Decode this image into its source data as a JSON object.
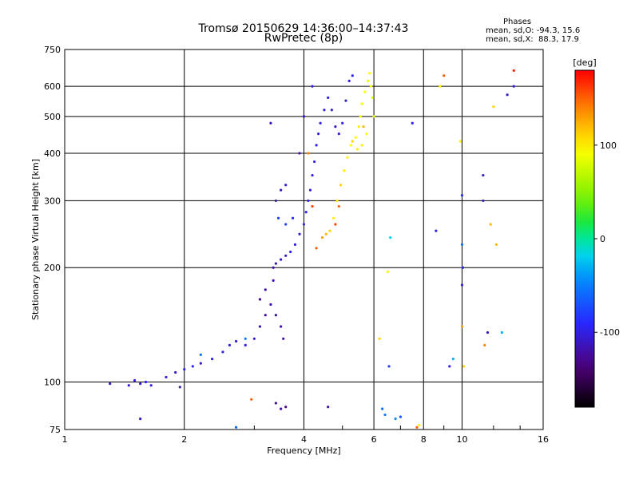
{
  "title_line1": "Tromsø 20150629 14:36:00–14:37:43",
  "title_line2": "RwPretec (8p)",
  "phases": {
    "title": "Phases",
    "o_line": "mean, sd,O: -94.3, 15.6",
    "x_line": "mean, sd,X:  88.3, 17.9"
  },
  "colorbar": {
    "label": "[deg]",
    "ticks": [
      100,
      0,
      -100
    ],
    "range": [
      -180,
      180
    ]
  },
  "colors": {
    "o_mode": "#1a3fd6",
    "x_mode": "#e8e800"
  },
  "chart_data": {
    "type": "scatter",
    "xlabel": "Frequency [MHz]",
    "ylabel": "Stationary phase Virtual Height [km]",
    "xscale": "log",
    "yscale": "log",
    "xlim": [
      1,
      16
    ],
    "ylim": [
      75,
      750
    ],
    "xticks": [
      1,
      2,
      4,
      6,
      8,
      10,
      16
    ],
    "yticks": [
      75,
      100,
      200,
      300,
      400,
      500,
      600,
      750
    ],
    "grid": true,
    "series": [
      {
        "points": [
          [
            1.3,
            99,
            -110
          ],
          [
            1.45,
            98,
            -105
          ],
          [
            1.5,
            101,
            -100
          ],
          [
            1.55,
            99,
            -110
          ],
          [
            1.6,
            100,
            -95
          ],
          [
            1.65,
            98,
            -100
          ],
          [
            1.8,
            103,
            -100
          ],
          [
            1.9,
            106,
            -110
          ],
          [
            2.0,
            108,
            -100
          ],
          [
            2.1,
            110,
            -95
          ],
          [
            2.2,
            112,
            -105
          ],
          [
            2.35,
            115,
            -100
          ],
          [
            2.5,
            120,
            -100
          ],
          [
            2.6,
            125,
            -95
          ],
          [
            2.7,
            128,
            -100
          ],
          [
            2.85,
            125,
            -100
          ],
          [
            3.0,
            130,
            -105
          ],
          [
            3.1,
            140,
            -110
          ],
          [
            3.2,
            150,
            -120
          ],
          [
            3.3,
            160,
            -120
          ],
          [
            3.4,
            150,
            -115
          ],
          [
            3.5,
            140,
            -120
          ],
          [
            3.55,
            130,
            -120
          ],
          [
            3.1,
            165,
            -125
          ],
          [
            3.2,
            175,
            -120
          ],
          [
            3.35,
            185,
            -115
          ],
          [
            3.35,
            200,
            -120
          ],
          [
            3.4,
            205,
            -110
          ],
          [
            3.5,
            210,
            -105
          ],
          [
            3.6,
            215,
            -110
          ],
          [
            3.7,
            220,
            -100
          ],
          [
            3.8,
            230,
            -100
          ],
          [
            3.9,
            245,
            -100
          ],
          [
            4.0,
            260,
            -100
          ],
          [
            4.05,
            280,
            -100
          ],
          [
            4.1,
            300,
            -100
          ],
          [
            4.15,
            320,
            -105
          ],
          [
            4.2,
            350,
            -100
          ],
          [
            4.25,
            380,
            -100
          ],
          [
            4.3,
            420,
            -100
          ],
          [
            4.35,
            450,
            -100
          ],
          [
            4.4,
            480,
            -100
          ],
          [
            4.5,
            520,
            -100
          ],
          [
            4.6,
            560,
            -100
          ],
          [
            4.7,
            520,
            -100
          ],
          [
            4.8,
            470,
            -105
          ],
          [
            4.9,
            450,
            -100
          ],
          [
            5.0,
            480,
            -100
          ],
          [
            5.1,
            550,
            -100
          ],
          [
            5.2,
            620,
            -100
          ],
          [
            5.3,
            640,
            -95
          ],
          [
            3.4,
            300,
            -110
          ],
          [
            3.5,
            320,
            -110
          ],
          [
            3.6,
            330,
            -100
          ],
          [
            3.45,
            270,
            -80
          ],
          [
            3.6,
            260,
            -80
          ],
          [
            3.75,
            270,
            -90
          ],
          [
            4.2,
            600,
            -105
          ],
          [
            4.0,
            500,
            -115
          ],
          [
            3.9,
            400,
            -120
          ],
          [
            3.5,
            85,
            -120
          ],
          [
            3.4,
            88,
            -120
          ],
          [
            3.6,
            86,
            -130
          ],
          [
            4.6,
            86,
            -120
          ],
          [
            2.85,
            130,
            -50
          ],
          [
            6.3,
            85,
            -60
          ],
          [
            6.4,
            82,
            -50
          ],
          [
            2.2,
            118,
            -55
          ]
        ]
      },
      {
        "points": [
          [
            4.45,
            240,
            130
          ],
          [
            4.55,
            245,
            120
          ],
          [
            4.65,
            250,
            110
          ],
          [
            4.75,
            270,
            100
          ],
          [
            4.85,
            300,
            105
          ],
          [
            4.95,
            330,
            110
          ],
          [
            5.05,
            360,
            100
          ],
          [
            5.15,
            390,
            100
          ],
          [
            5.25,
            420,
            95
          ],
          [
            5.4,
            440,
            95
          ],
          [
            5.5,
            470,
            100
          ],
          [
            5.55,
            500,
            90
          ],
          [
            5.6,
            540,
            90
          ],
          [
            5.7,
            580,
            90
          ],
          [
            5.8,
            620,
            85
          ],
          [
            5.85,
            650,
            95
          ],
          [
            5.9,
            600,
            90
          ],
          [
            5.75,
            450,
            95
          ],
          [
            5.6,
            420,
            100
          ],
          [
            5.45,
            410,
            100
          ],
          [
            5.3,
            430,
            110
          ],
          [
            4.9,
            290,
            150
          ],
          [
            4.8,
            260,
            160
          ],
          [
            5.95,
            560,
            80
          ],
          [
            6.0,
            500,
            85
          ],
          [
            5.65,
            470,
            120
          ]
        ]
      },
      {
        "points": [
          [
            7.5,
            480,
            -100
          ],
          [
            8.6,
            250,
            -100
          ],
          [
            9.0,
            640,
            150
          ],
          [
            9.9,
            430,
            100
          ],
          [
            10.0,
            310,
            -90
          ],
          [
            10.0,
            230,
            -60
          ],
          [
            10.05,
            200,
            -90
          ],
          [
            10.0,
            180,
            -100
          ],
          [
            10.0,
            140,
            130
          ],
          [
            9.5,
            115,
            -30
          ],
          [
            9.3,
            110,
            -100
          ],
          [
            10.1,
            110,
            110
          ],
          [
            11.3,
            350,
            -110
          ],
          [
            11.3,
            300,
            -110
          ],
          [
            11.8,
            260,
            120
          ],
          [
            12.2,
            230,
            120
          ],
          [
            11.6,
            135,
            -110
          ],
          [
            11.4,
            125,
            140
          ],
          [
            12.6,
            135,
            -30
          ],
          [
            13.0,
            570,
            -110
          ],
          [
            13.5,
            600,
            -110
          ],
          [
            13.5,
            660,
            170
          ],
          [
            12.0,
            530,
            110
          ],
          [
            8.8,
            600,
            100
          ],
          [
            6.6,
            240,
            -20
          ],
          [
            6.5,
            195,
            90
          ],
          [
            6.55,
            110,
            -80
          ],
          [
            6.8,
            80,
            -40
          ],
          [
            7.7,
            76,
            150
          ],
          [
            7.0,
            81,
            -70
          ],
          [
            7.8,
            77,
            100
          ],
          [
            6.2,
            130,
            110
          ],
          [
            2.95,
            90,
            150
          ],
          [
            4.2,
            290,
            160
          ],
          [
            4.1,
            400,
            140
          ],
          [
            3.3,
            480,
            -120
          ],
          [
            1.55,
            80,
            -110
          ],
          [
            1.95,
            97,
            -110
          ],
          [
            2.7,
            76,
            -60
          ],
          [
            4.3,
            225,
            150
          ]
        ]
      }
    ]
  }
}
